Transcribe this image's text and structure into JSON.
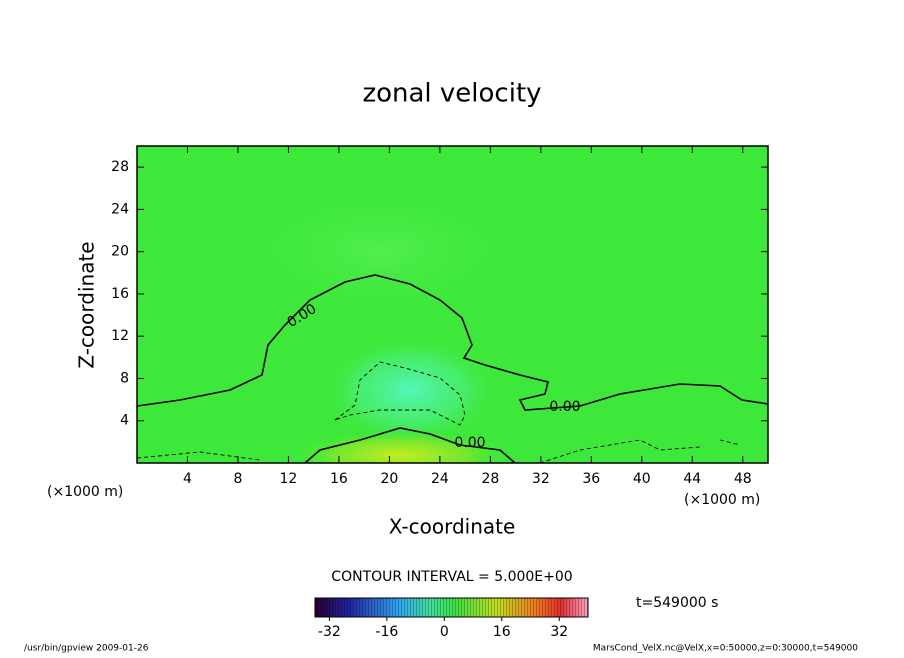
{
  "chart_data": {
    "type": "contour",
    "title": "zonal velocity",
    "xlabel": "X-coordinate",
    "ylabel": "Z-coordinate",
    "x_unit": "(×1000 m)",
    "y_unit": "(×1000 m)",
    "xlim": [
      0,
      50
    ],
    "xticks": [
      4,
      8,
      12,
      16,
      20,
      24,
      28,
      32,
      36,
      40,
      44,
      48
    ],
    "ylim": [
      0,
      30
    ],
    "yticks": [
      4,
      8,
      12,
      16,
      20,
      24,
      28
    ],
    "contour_levels": [
      {
        "value": 0,
        "label": "0.00"
      }
    ],
    "contour_interval": "CONTOUR INTERVAL = 5.000E+00",
    "colorbar_lim": [
      -36,
      40
    ],
    "colorbar_ticks": [
      -32,
      -16,
      0,
      16,
      32
    ],
    "time_label": "t=549000 s",
    "footer_left": "/usr/bin/gpview   2009-01-26",
    "footer_right": "MarsCond_VelX.nc@VelX,x=0:50000,z=0:30000,t=549000"
  }
}
